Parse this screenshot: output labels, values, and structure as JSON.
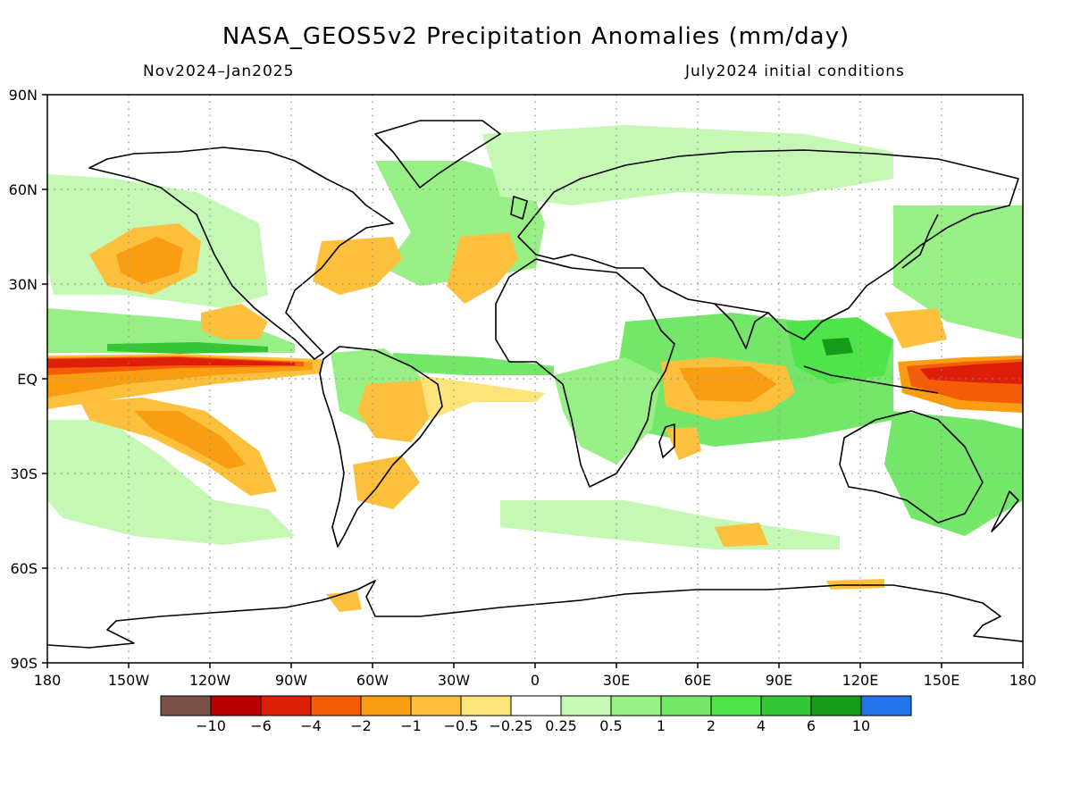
{
  "title": "NASA_GEOS5v2 Precipitation Anomalies (mm/day)",
  "subtitle_left": "Nov2024–Jan2025",
  "subtitle_right": "July2024 initial conditions",
  "lat_labels": [
    "90N",
    "60N",
    "30N",
    "EQ",
    "30S",
    "60S",
    "90S"
  ],
  "lon_labels": [
    "180",
    "150W",
    "120W",
    "90W",
    "60W",
    "30W",
    "0",
    "30E",
    "60E",
    "90E",
    "120E",
    "150E",
    "180"
  ],
  "colorbar": {
    "colors": [
      "#7a4f46",
      "#b80000",
      "#dd1f0a",
      "#f55c08",
      "#f99d12",
      "#fdc03c",
      "#fde47a",
      "#ffffff",
      "#c4f8b4",
      "#98ef86",
      "#74e66a",
      "#4ee44a",
      "#35c636",
      "#179b1a",
      "#2374ea"
    ],
    "labels": [
      "−10",
      "−6",
      "−4",
      "−2",
      "−1",
      "−0.5",
      "−0.25",
      "0.25",
      "0.5",
      "1",
      "2",
      "4",
      "6",
      "10"
    ]
  },
  "anomaly_colors": {
    "strong_dry": "#b80000",
    "dry": "#dd1f0a",
    "moderate_dry": "#f55c08",
    "mild_dry": "#f99d12",
    "weak_dry": "#fdc03c",
    "slight_dry": "#fde47a",
    "slight_wet": "#c4f8b4",
    "weak_wet": "#98ef86",
    "mild_wet": "#74e66a",
    "wet": "#4ee44a",
    "strong_wet": "#179b1a",
    "coast": "#000000",
    "grid": "#8c8c8c"
  }
}
